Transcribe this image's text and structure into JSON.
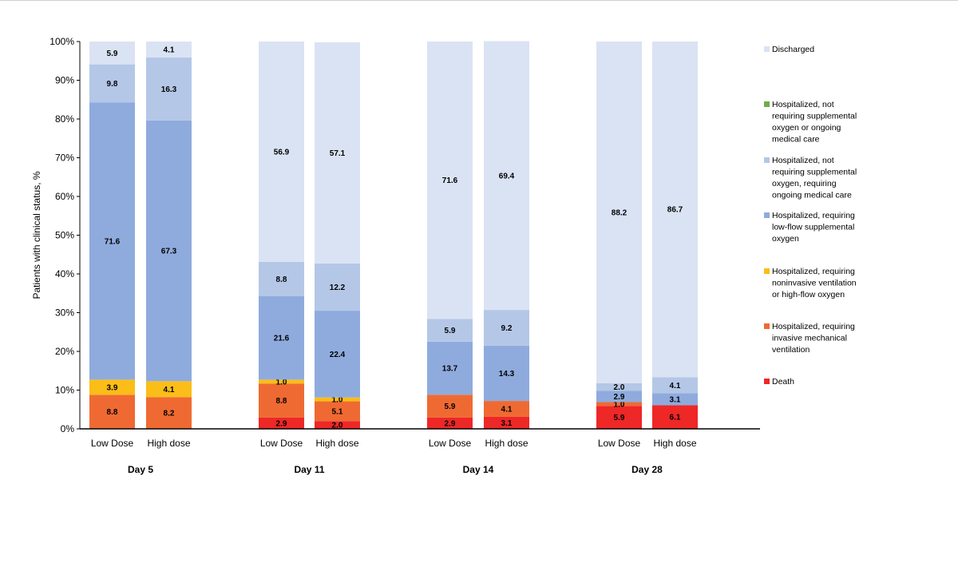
{
  "chart_data": {
    "type": "bar",
    "stacked": true,
    "ylabel": "Patients with clinical status, %",
    "ylim": [
      0,
      100
    ],
    "y_ticks": [
      "0%",
      "10%",
      "20%",
      "30%",
      "40%",
      "50%",
      "60%",
      "70%",
      "80%",
      "90%",
      "100%"
    ],
    "groups": [
      "Day 5",
      "Day 11",
      "Day 14",
      "Day 28"
    ],
    "categories": [
      "Low Dose",
      "High dose",
      "Low Dose",
      "High dose",
      "Low Dose",
      "High dose",
      "Low Dose",
      "High dose"
    ],
    "legend_position": "right",
    "series": [
      {
        "name": "Death",
        "color": "#ee2727",
        "values": [
          0,
          0,
          2.9,
          2.0,
          2.9,
          3.1,
          5.9,
          6.1
        ],
        "labels": [
          "",
          "",
          "2.9",
          "2.0",
          "2.9",
          "3.1",
          "5.9",
          "6.1"
        ]
      },
      {
        "name": "Hospitalized, requiring invasive mechanical ventilation",
        "color": "#ef6a32",
        "values": [
          8.8,
          8.2,
          8.8,
          5.1,
          5.9,
          4.1,
          1.0,
          0
        ],
        "labels": [
          "8.8",
          "8.2",
          "8.8",
          "5.1",
          "5.9",
          "4.1",
          "1.0",
          ""
        ]
      },
      {
        "name": "Hospitalized, requiring noninvasive ventilation or high-flow oxygen",
        "color": "#fbbd18",
        "values": [
          3.9,
          4.1,
          1.0,
          1.0,
          0,
          0,
          0,
          0
        ],
        "labels": [
          "3.9",
          "4.1",
          "1.0",
          "1.0",
          "",
          "",
          "",
          ""
        ]
      },
      {
        "name": "Hospitalized, requiring low-flow supplemental oxygen",
        "color": "#8fabdd",
        "values": [
          71.6,
          67.3,
          21.6,
          22.4,
          13.7,
          14.3,
          2.9,
          3.1
        ],
        "labels": [
          "71.6",
          "67.3",
          "21.6",
          "22.4",
          "13.7",
          "14.3",
          "2.9",
          "3.1"
        ]
      },
      {
        "name": "Hospitalized, not requiring supplemental oxygen, requiring ongoing medical care",
        "color": "#b4c7e7",
        "values": [
          9.8,
          16.3,
          8.8,
          12.2,
          5.9,
          9.2,
          2.0,
          4.1
        ],
        "labels": [
          "9.8",
          "16.3",
          "8.8",
          "12.2",
          "5.9",
          "9.2",
          "2.0",
          "4.1"
        ]
      },
      {
        "name": "Hospitalized, not requiring supplemental oxygen or ongoing medical care",
        "color": "#70ad47",
        "values": [
          0,
          0,
          0,
          0,
          0,
          0,
          0,
          0
        ],
        "labels": [
          "",
          "",
          "",
          "",
          "",
          "",
          "",
          ""
        ]
      },
      {
        "name": "Discharged",
        "color": "#dae3f3",
        "values": [
          5.9,
          4.1,
          56.9,
          57.1,
          71.6,
          69.4,
          88.2,
          86.7
        ],
        "labels": [
          "5.9",
          "4.1",
          "56.9",
          "57.1",
          "71.6",
          "69.4",
          "88.2",
          "86.7"
        ]
      }
    ],
    "legend": [
      {
        "lines": [
          "Discharged"
        ],
        "color": "#dae3f3"
      },
      {
        "lines": [
          "Hospitalized, not",
          "requiring supplemental",
          "oxygen or ongoing",
          "medical care"
        ],
        "color": "#70ad47"
      },
      {
        "lines": [
          "Hospitalized, not",
          "requiring supplemental",
          "oxygen, requiring",
          "ongoing medical care"
        ],
        "color": "#b4c7e7"
      },
      {
        "lines": [
          "Hospitalized, requiring",
          "low-flow supplemental",
          "oxygen"
        ],
        "color": "#8fabdd"
      },
      {
        "lines": [
          "Hospitalized, requiring",
          "noninvasive ventilation",
          "or high-flow oxygen"
        ],
        "color": "#fbbd18"
      },
      {
        "lines": [
          "Hospitalized, requiring",
          "invasive mechanical",
          "ventilation"
        ],
        "color": "#ef6a32"
      },
      {
        "lines": [
          "Death"
        ],
        "color": "#ee2727"
      }
    ]
  }
}
